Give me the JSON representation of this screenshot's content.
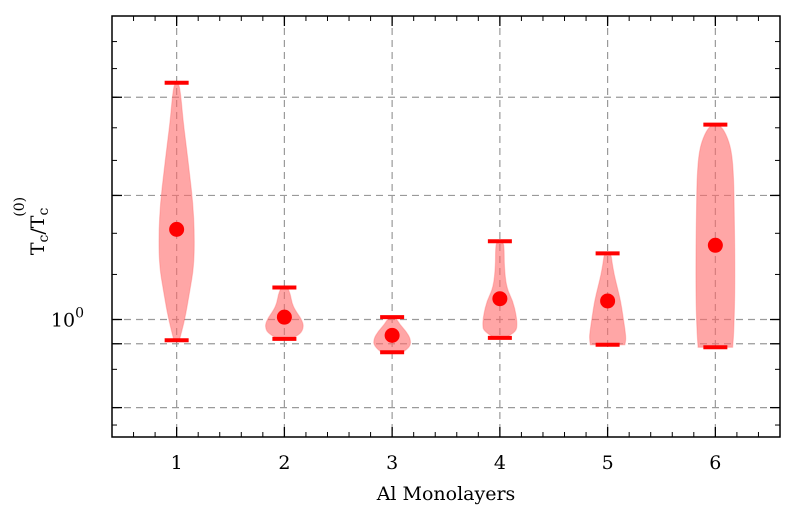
{
  "chart_data": {
    "type": "violin",
    "title": "",
    "xlabel": "Al Monolayers",
    "ylabel": {
      "base": "T",
      "sub": "c",
      "slash": "/",
      "base2": "T",
      "sub2": "c",
      "sup2": "(0)"
    },
    "yscale": "log",
    "ylim": [
      0.78,
      1.9
    ],
    "xlim": [
      0.4,
      6.6
    ],
    "y_tick_major": {
      "value": 1.0,
      "base": "10",
      "exp": "0"
    },
    "y_gridlines": [
      0.83,
      0.95,
      1.0,
      1.3,
      1.6
    ],
    "grid": "dashed",
    "color": "#ff6b6b",
    "categories": [
      "1",
      "2",
      "3",
      "4",
      "5",
      "6"
    ],
    "violins": [
      {
        "x": 1,
        "min": 0.957,
        "max": 1.65,
        "mean": 1.21,
        "profile": [
          [
            0.957,
            0.025
          ],
          [
            1.0,
            0.075
          ],
          [
            1.06,
            0.12
          ],
          [
            1.12,
            0.16
          ],
          [
            1.2,
            0.165
          ],
          [
            1.28,
            0.15
          ],
          [
            1.36,
            0.12
          ],
          [
            1.44,
            0.09
          ],
          [
            1.52,
            0.06
          ],
          [
            1.6,
            0.04
          ],
          [
            1.65,
            0.02
          ]
        ]
      },
      {
        "x": 2,
        "min": 0.96,
        "max": 1.07,
        "mean": 1.005,
        "profile": [
          [
            0.96,
            0.06
          ],
          [
            0.97,
            0.15
          ],
          [
            0.985,
            0.18
          ],
          [
            1.0,
            0.16
          ],
          [
            1.02,
            0.1
          ],
          [
            1.035,
            0.07
          ],
          [
            1.055,
            0.055
          ],
          [
            1.07,
            0.03
          ]
        ]
      },
      {
        "x": 3,
        "min": 0.933,
        "max": 1.005,
        "mean": 0.967,
        "profile": [
          [
            0.933,
            0.1
          ],
          [
            0.945,
            0.17
          ],
          [
            0.96,
            0.17
          ],
          [
            0.975,
            0.13
          ],
          [
            0.99,
            0.07
          ],
          [
            1.005,
            0.03
          ]
        ]
      },
      {
        "x": 4,
        "min": 0.962,
        "max": 1.18,
        "mean": 1.045,
        "profile": [
          [
            0.962,
            0.05
          ],
          [
            0.975,
            0.15
          ],
          [
            0.99,
            0.16
          ],
          [
            1.01,
            0.15
          ],
          [
            1.04,
            0.12
          ],
          [
            1.07,
            0.06
          ],
          [
            1.12,
            0.04
          ],
          [
            1.16,
            0.04
          ],
          [
            1.18,
            0.03
          ]
        ]
      },
      {
        "x": 5,
        "min": 0.948,
        "max": 1.15,
        "mean": 1.04,
        "profile": [
          [
            0.948,
            0.16
          ],
          [
            0.96,
            0.17
          ],
          [
            0.98,
            0.16
          ],
          [
            1.01,
            0.14
          ],
          [
            1.04,
            0.12
          ],
          [
            1.07,
            0.09
          ],
          [
            1.1,
            0.06
          ],
          [
            1.13,
            0.04
          ],
          [
            1.15,
            0.03
          ]
        ]
      },
      {
        "x": 6,
        "min": 0.943,
        "max": 1.51,
        "mean": 1.17,
        "profile": [
          [
            0.943,
            0.16
          ],
          [
            0.97,
            0.17
          ],
          [
            1.05,
            0.18
          ],
          [
            1.15,
            0.18
          ],
          [
            1.25,
            0.175
          ],
          [
            1.35,
            0.17
          ],
          [
            1.43,
            0.15
          ],
          [
            1.48,
            0.1
          ],
          [
            1.51,
            0.04
          ]
        ]
      }
    ]
  }
}
